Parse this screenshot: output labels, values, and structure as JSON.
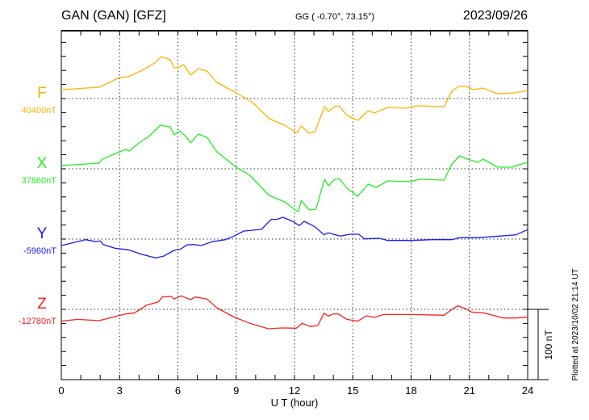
{
  "header": {
    "station": "GAN (GAN)  [GFZ]",
    "coords": "GG ( -0.70°,  73.15°)",
    "date": "2023/09/26"
  },
  "footer": {
    "plotted": "Plotted at 2023/10/02 21:14 UT"
  },
  "chart_data": {
    "type": "line",
    "title": "GAN (GAN)  [GFZ]",
    "xlabel": "U T (hour)",
    "xlim": [
      0,
      24
    ],
    "xticks": [
      "0",
      "3",
      "6",
      "9",
      "12",
      "15",
      "18",
      "21",
      "24"
    ],
    "scale_bar": "100 nT",
    "grid": true,
    "value_note": "values are deviations in nT from each series baseline",
    "series": [
      {
        "name": "F",
        "baseline": "40400nT",
        "color": "#FFB300",
        "points": [
          [
            0,
            12.6
          ],
          [
            1.95,
            16.1
          ],
          [
            3,
            29.9
          ],
          [
            3.45,
            31
          ],
          [
            4.15,
            40
          ],
          [
            4.8,
            50.6
          ],
          [
            5.15,
            59.8
          ],
          [
            5.6,
            55.2
          ],
          [
            5.8,
            43.7
          ],
          [
            6,
            43.7
          ],
          [
            6.3,
            48.3
          ],
          [
            6.65,
            33.3
          ],
          [
            7.05,
            42.5
          ],
          [
            7.5,
            39
          ],
          [
            8,
            23
          ],
          [
            9,
            8
          ],
          [
            9.85,
            -5.7
          ],
          [
            10.7,
            -28.7
          ],
          [
            11.5,
            -37.9
          ],
          [
            12.05,
            -48.3
          ],
          [
            12.15,
            -48.3
          ],
          [
            12.35,
            -39
          ],
          [
            12.75,
            -49.4
          ],
          [
            13.05,
            -47.1
          ],
          [
            13.55,
            -11.5
          ],
          [
            13.75,
            -18.4
          ],
          [
            14.07,
            -11.5
          ],
          [
            14.3,
            -10.3
          ],
          [
            14.7,
            -24.1
          ],
          [
            15.25,
            -31
          ],
          [
            15.8,
            -17.2
          ],
          [
            16.1,
            -20.7
          ],
          [
            16.8,
            -12.6
          ],
          [
            17.75,
            -13.8
          ],
          [
            18.3,
            -10.3
          ],
          [
            19.7,
            -11.5
          ],
          [
            20.1,
            10.3
          ],
          [
            20.45,
            17.2
          ],
          [
            20.85,
            17.2
          ],
          [
            21.2,
            12.6
          ],
          [
            21.7,
            14.9
          ],
          [
            22.45,
            6.9
          ],
          [
            23.3,
            8
          ],
          [
            24,
            11.5
          ]
        ]
      },
      {
        "name": "X",
        "baseline": "37860nT",
        "color": "#22EE22",
        "points": [
          [
            0,
            4.6
          ],
          [
            1.95,
            8
          ],
          [
            2.1,
            13.8
          ],
          [
            3,
            24.1
          ],
          [
            3.3,
            27.6
          ],
          [
            3.5,
            25.3
          ],
          [
            4,
            36.8
          ],
          [
            4.55,
            47.1
          ],
          [
            5.1,
            62.1
          ],
          [
            5.6,
            59.8
          ],
          [
            5.8,
            48.3
          ],
          [
            6.1,
            54
          ],
          [
            6.45,
            44.8
          ],
          [
            6.65,
            36.8
          ],
          [
            7.05,
            49.4
          ],
          [
            7.5,
            44.8
          ],
          [
            8,
            24.1
          ],
          [
            9,
            2.3
          ],
          [
            9.7,
            -9.2
          ],
          [
            10.7,
            -37.9
          ],
          [
            11.5,
            -47.1
          ],
          [
            12.1,
            -59.8
          ],
          [
            12.2,
            -60.9
          ],
          [
            12.35,
            -44.8
          ],
          [
            12.75,
            -58.6
          ],
          [
            13.1,
            -57.5
          ],
          [
            13.55,
            -14.9
          ],
          [
            13.75,
            -24.1
          ],
          [
            14.07,
            -14.9
          ],
          [
            14.3,
            -13.8
          ],
          [
            14.7,
            -27.6
          ],
          [
            15.25,
            -39.1
          ],
          [
            15.8,
            -21.8
          ],
          [
            16.2,
            -26.4
          ],
          [
            16.8,
            -17.2
          ],
          [
            17.9,
            -18.4
          ],
          [
            18.45,
            -14.9
          ],
          [
            19.7,
            -16.1
          ],
          [
            20.1,
            6.9
          ],
          [
            20.5,
            18.4
          ],
          [
            20.9,
            13.8
          ],
          [
            21.45,
            9.2
          ],
          [
            21.7,
            13.8
          ],
          [
            22.45,
            2.3
          ],
          [
            23.15,
            2.3
          ],
          [
            23.55,
            5.7
          ],
          [
            24,
            9.2
          ]
        ]
      },
      {
        "name": "Y",
        "baseline": "-5960nT",
        "color": "#1A1AFF",
        "points": [
          [
            0,
            -9.2
          ],
          [
            1.25,
            -0.8
          ],
          [
            1.8,
            -3.8
          ],
          [
            2,
            -2.7
          ],
          [
            2.15,
            -7.7
          ],
          [
            2.75,
            -13
          ],
          [
            3.45,
            -15.3
          ],
          [
            4.15,
            -21.8
          ],
          [
            4.85,
            -26.8
          ],
          [
            5.25,
            -24.5
          ],
          [
            5.8,
            -16.1
          ],
          [
            6.15,
            -14.2
          ],
          [
            6.45,
            -8.4
          ],
          [
            6.8,
            -7.7
          ],
          [
            7.2,
            -9.2
          ],
          [
            7.75,
            -3.8
          ],
          [
            8.45,
            -0.8
          ],
          [
            8.85,
            3.8
          ],
          [
            9.4,
            11.5
          ],
          [
            10.3,
            13.8
          ],
          [
            10.8,
            28
          ],
          [
            11.1,
            28
          ],
          [
            11.4,
            31
          ],
          [
            11.9,
            25.3
          ],
          [
            12.25,
            19.2
          ],
          [
            12.5,
            25.3
          ],
          [
            13.05,
            17.6
          ],
          [
            13.52,
            6.1
          ],
          [
            13.73,
            8.8
          ],
          [
            14.35,
            4.2
          ],
          [
            14.85,
            6.9
          ],
          [
            15.3,
            6.9
          ],
          [
            15.6,
            0.4
          ],
          [
            16.36,
            1.1
          ],
          [
            16.8,
            -1.9
          ],
          [
            18,
            -1.9
          ],
          [
            19.1,
            -0.8
          ],
          [
            20.1,
            -0.8
          ],
          [
            20.5,
            1.9
          ],
          [
            21.45,
            1.9
          ],
          [
            22.55,
            4.2
          ],
          [
            23.4,
            6.1
          ],
          [
            24,
            13.4
          ]
        ]
      },
      {
        "name": "Z",
        "baseline": "-12780nT",
        "color": "#FF2020",
        "points": [
          [
            0,
            -16.9
          ],
          [
            0.83,
            -14.2
          ],
          [
            1.95,
            -16.1
          ],
          [
            2.75,
            -10.3
          ],
          [
            3.3,
            -6.5
          ],
          [
            3.75,
            -5.4
          ],
          [
            4.4,
            6.1
          ],
          [
            5,
            10.7
          ],
          [
            5.2,
            17.6
          ],
          [
            5.65,
            18.4
          ],
          [
            5.8,
            14.6
          ],
          [
            6.15,
            19.2
          ],
          [
            6.65,
            13.8
          ],
          [
            6.9,
            17.6
          ],
          [
            7.5,
            14.6
          ],
          [
            8,
            2.3
          ],
          [
            8.85,
            -10.3
          ],
          [
            9.7,
            -19.9
          ],
          [
            10.65,
            -27.6
          ],
          [
            11.35,
            -26.4
          ],
          [
            12.1,
            -26.8
          ],
          [
            12.4,
            -19.9
          ],
          [
            12.8,
            -24.5
          ],
          [
            13.2,
            -23
          ],
          [
            13.52,
            -5.4
          ],
          [
            13.73,
            -9.6
          ],
          [
            14,
            -6.5
          ],
          [
            14.25,
            -6.5
          ],
          [
            14.7,
            -14.2
          ],
          [
            15.25,
            -16.9
          ],
          [
            15.7,
            -9.2
          ],
          [
            16.1,
            -11.5
          ],
          [
            16.6,
            -7.3
          ],
          [
            18,
            -7.3
          ],
          [
            19.7,
            -8.4
          ],
          [
            20.1,
            0
          ],
          [
            20.4,
            5
          ],
          [
            20.8,
            1.1
          ],
          [
            21.1,
            -3.8
          ],
          [
            21.8,
            -5.4
          ],
          [
            22.75,
            -12.3
          ],
          [
            23.4,
            -12.3
          ],
          [
            24,
            -11.1
          ]
        ]
      }
    ]
  }
}
